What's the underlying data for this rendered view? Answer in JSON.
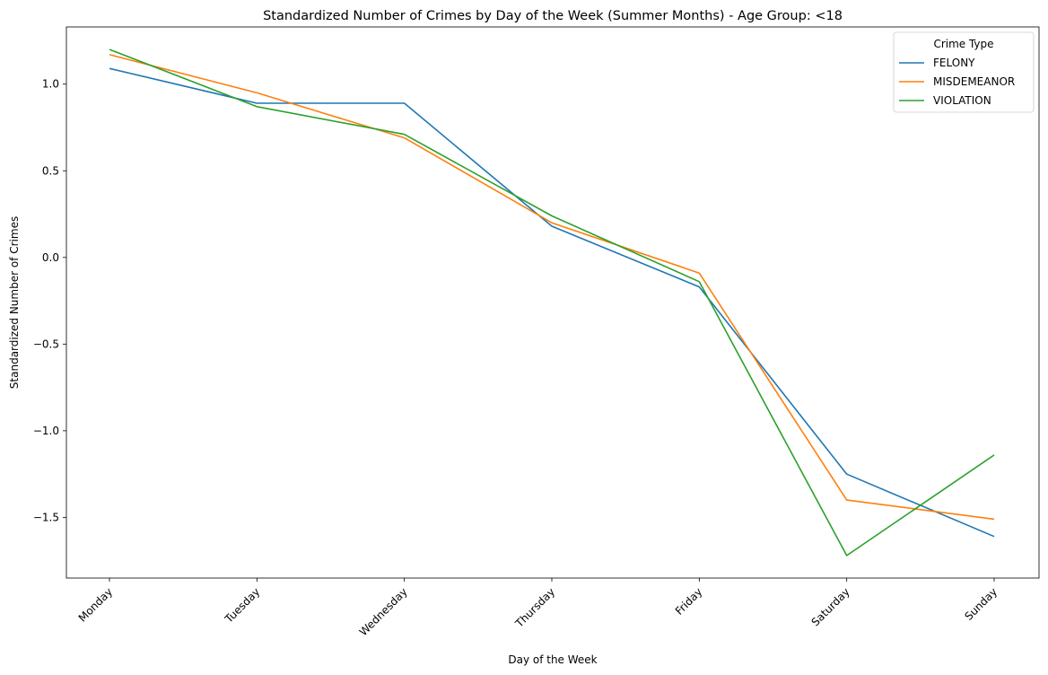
{
  "chart_data": {
    "type": "line",
    "title": "Standardized Number of Crimes by Day of the Week (Summer Months) - Age Group: <18",
    "xlabel": "Day of the Week",
    "ylabel": "Standardized Number of Crimes",
    "categories": [
      "Monday",
      "Tuesday",
      "Wednesday",
      "Thursday",
      "Friday",
      "Saturday",
      "Sunday"
    ],
    "ylim": [
      -1.85,
      1.33
    ],
    "yticks": [
      -1.5,
      -1.0,
      -0.5,
      0.0,
      0.5,
      1.0
    ],
    "ytick_labels": [
      "−1.5",
      "−1.0",
      "−0.5",
      "0.0",
      "0.5",
      "1.0"
    ],
    "grid": false,
    "legend": {
      "title": "Crime Type",
      "placement": "top-right"
    },
    "series": [
      {
        "name": "FELONY",
        "color": "#1f77b4",
        "values": [
          1.09,
          0.89,
          0.89,
          0.18,
          -0.17,
          -1.25,
          -1.61
        ]
      },
      {
        "name": "MISDEMEANOR",
        "color": "#ff7f0e",
        "values": [
          1.17,
          0.95,
          0.69,
          0.2,
          -0.09,
          -1.4,
          -1.51
        ]
      },
      {
        "name": "VIOLATION",
        "color": "#2ca02c",
        "values": [
          1.2,
          0.87,
          0.71,
          0.24,
          -0.14,
          -1.72,
          -1.14
        ]
      }
    ]
  }
}
